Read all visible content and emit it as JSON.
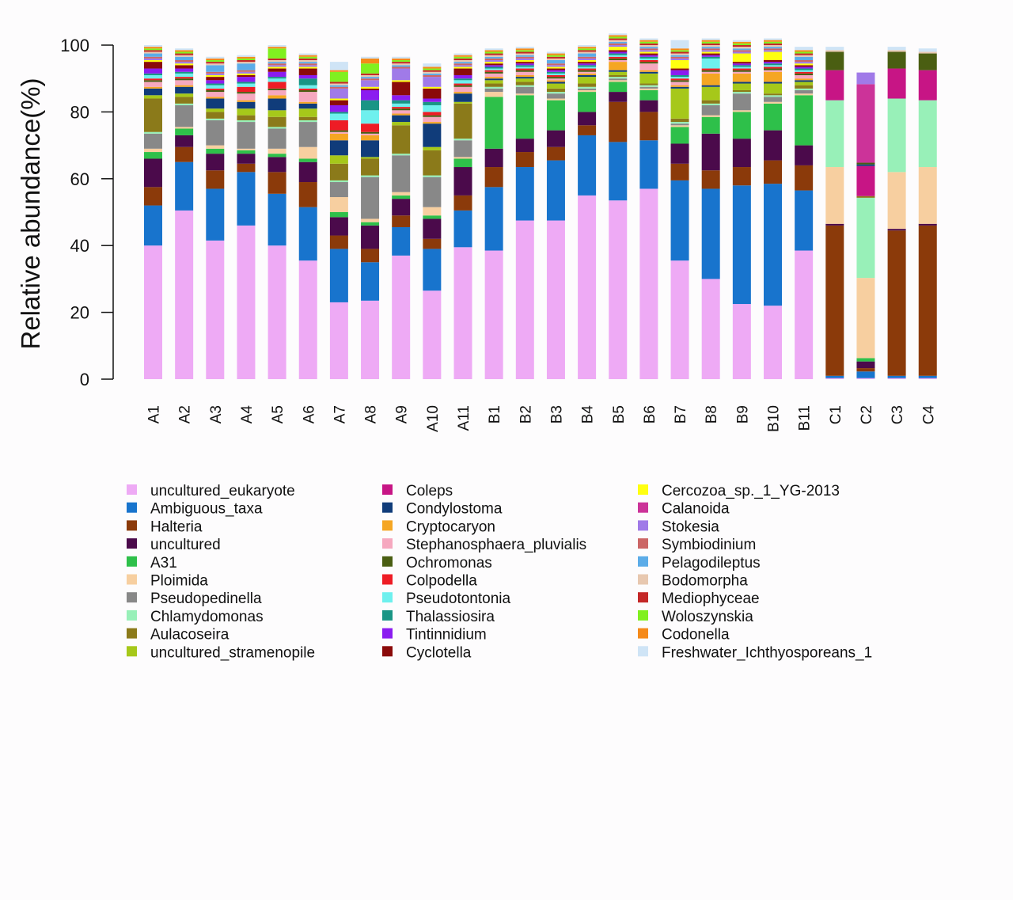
{
  "chart_data": {
    "type": "bar",
    "stacked": true,
    "ylabel": "Relative abundance(%)",
    "xlabel": "",
    "ylim": [
      0,
      100
    ],
    "yticks": [
      0,
      20,
      40,
      60,
      80,
      100
    ],
    "grid": false,
    "legend_position": "bottom",
    "categories": [
      "A1",
      "A2",
      "A3",
      "A4",
      "A5",
      "A6",
      "A7",
      "A8",
      "A9",
      "A10",
      "A11",
      "B1",
      "B2",
      "B3",
      "B4",
      "B5",
      "B6",
      "B7",
      "B8",
      "B9",
      "B10",
      "B11",
      "C1",
      "C2",
      "C3",
      "C4"
    ],
    "series": [
      {
        "name": "uncultured_eukaryote",
        "color": "#eeaaf5",
        "values": [
          40,
          50.5,
          41.5,
          46,
          40,
          35.5,
          23,
          23.5,
          37,
          26.5,
          39.5,
          38.5,
          47.5,
          47.5,
          55,
          53.5,
          57,
          35.5,
          30,
          22.5,
          22,
          38.5,
          0.3,
          0.3,
          0.3,
          0.3
        ]
      },
      {
        "name": "Ambiguous_taxa",
        "color": "#1874cd",
        "values": [
          12,
          14.5,
          15.5,
          16,
          15.5,
          16,
          16,
          11.5,
          8.5,
          12.5,
          11,
          19,
          16,
          18,
          18,
          17.5,
          14.5,
          24,
          27,
          35.5,
          36.5,
          18,
          0.7,
          2,
          0.7,
          0.7
        ]
      },
      {
        "name": "Halteria",
        "color": "#8b3a0a",
        "values": [
          5.5,
          4.5,
          5.5,
          2.5,
          6.5,
          7.5,
          4,
          4,
          3.5,
          3,
          4.5,
          6,
          4.5,
          4,
          3,
          12,
          8.5,
          5,
          5.5,
          5.5,
          7,
          7.5,
          45,
          1,
          43.5,
          45
        ]
      },
      {
        "name": "uncultured",
        "color": "#4b0a4b",
        "values": [
          8.5,
          3.5,
          5,
          3,
          4.5,
          6,
          5.5,
          7,
          5,
          6,
          8.5,
          5.5,
          4,
          5,
          4,
          3,
          3.5,
          6,
          11,
          8.5,
          9,
          6,
          0.5,
          2,
          0.5,
          0.5
        ]
      },
      {
        "name": "A31",
        "color": "#2ec04a",
        "values": [
          2,
          2,
          1.5,
          1,
          1,
          1,
          1.5,
          1,
          1,
          1,
          2.5,
          15.5,
          13,
          9,
          6,
          3,
          3,
          5,
          5,
          8,
          8,
          15,
          0,
          1,
          0,
          0
        ]
      },
      {
        "name": "Ploimida",
        "color": "#f7cfa0",
        "values": [
          1,
          0.5,
          1,
          0.5,
          1.5,
          3.5,
          4.5,
          1,
          1,
          2.5,
          0.5,
          1.5,
          0.5,
          0.5,
          0.5,
          0.5,
          0.5,
          0.5,
          0.5,
          0.5,
          0.5,
          0.5,
          17,
          24,
          17,
          17
        ]
      },
      {
        "name": "Pseudopedinella",
        "color": "#888888",
        "values": [
          4.5,
          6.5,
          7.5,
          8,
          6,
          7.5,
          4.5,
          12.5,
          11,
          9,
          5,
          1,
          2,
          1.5,
          0.5,
          0.5,
          0.5,
          0.5,
          3,
          5,
          1.5,
          1,
          0,
          0,
          0,
          0
        ]
      },
      {
        "name": "Chlamydomonas",
        "color": "#98f0b8",
        "values": [
          0.5,
          0.5,
          0.5,
          0.5,
          0.5,
          0.5,
          0.5,
          0.5,
          0.5,
          0.5,
          0.5,
          0.5,
          0.5,
          0.5,
          0.5,
          0.5,
          0.5,
          0.5,
          0.5,
          0.5,
          0.5,
          0.5,
          20,
          24,
          22,
          20
        ]
      },
      {
        "name": "Aulacoseira",
        "color": "#8b7a1a",
        "values": [
          10,
          2,
          2,
          1.5,
          3,
          1,
          5,
          5,
          8.5,
          7.5,
          10.5,
          1,
          1,
          1,
          1,
          0.5,
          0.5,
          1,
          1,
          0.5,
          0.5,
          1,
          0,
          0.5,
          0,
          0
        ]
      },
      {
        "name": "uncultured_stramenopile",
        "color": "#a6c81a",
        "values": [
          1,
          1,
          1,
          2,
          2,
          2.5,
          2.5,
          0.5,
          1,
          1,
          0.5,
          1,
          1,
          1.5,
          2,
          1,
          3,
          9,
          4,
          2,
          3,
          1,
          0,
          0,
          0,
          0
        ]
      },
      {
        "name": "Coleps",
        "color": "#c71585",
        "values": [
          0,
          0,
          0,
          0,
          0,
          0,
          0,
          0,
          0,
          0,
          0,
          0,
          0,
          0,
          0,
          0,
          0,
          0,
          0,
          0,
          0,
          0,
          9,
          9,
          9,
          9
        ]
      },
      {
        "name": "Condylostoma",
        "color": "#103c7a",
        "values": [
          2,
          2,
          3,
          2,
          3.5,
          1.5,
          4.5,
          5,
          2,
          7,
          2.5,
          0.5,
          0.5,
          0.5,
          0.5,
          0.5,
          0.5,
          0.5,
          0.5,
          0.5,
          0.5,
          0.5,
          0,
          0.5,
          0,
          0
        ]
      },
      {
        "name": "Cryptocaryon",
        "color": "#f5a623",
        "values": [
          0.5,
          0.5,
          0.5,
          0.5,
          1,
          0.5,
          2,
          1.5,
          0.5,
          0.5,
          0.5,
          0.5,
          0.5,
          0.5,
          0.5,
          2.5,
          0.5,
          0.5,
          3.5,
          2.5,
          3,
          0.5,
          0,
          0,
          0,
          0
        ]
      },
      {
        "name": "Stephanosphaera_pluvialis",
        "color": "#f6a8bf",
        "values": [
          1.5,
          1.5,
          1.5,
          2,
          1.5,
          3,
          0.5,
          0.5,
          1,
          1.5,
          1.5,
          1,
          1,
          0.5,
          0.5,
          0.5,
          2,
          1,
          0.5,
          0.5,
          0.5,
          1,
          0,
          0,
          0,
          0
        ]
      },
      {
        "name": "Ochromonas",
        "color": "#4a5e12",
        "values": [
          0.5,
          0.5,
          0.5,
          0.5,
          0.5,
          0.5,
          0.5,
          0.5,
          0.5,
          0.5,
          0.5,
          0.5,
          0.5,
          0.5,
          0.5,
          0.5,
          0.5,
          0.5,
          0.5,
          0.5,
          0.5,
          0.5,
          5.5,
          0.5,
          5,
          5
        ]
      },
      {
        "name": "Colpodella",
        "color": "#ee1c25",
        "values": [
          0.5,
          0.5,
          0.5,
          1.5,
          2,
          0.5,
          3,
          2.5,
          0.5,
          1,
          0.5,
          0.5,
          0.5,
          0.5,
          0.5,
          0.5,
          0.5,
          0.5,
          0.5,
          0.5,
          0.5,
          0.5,
          0,
          0,
          0,
          0
        ]
      },
      {
        "name": "Pseudotontonia",
        "color": "#6ef0ee",
        "values": [
          1,
          1,
          1,
          1,
          1,
          1,
          2,
          4,
          1,
          2,
          1,
          0.5,
          0.5,
          0.5,
          0.5,
          0.5,
          0.5,
          0.5,
          3,
          0.5,
          0.5,
          0.5,
          0,
          0,
          0,
          0
        ]
      },
      {
        "name": "Thalassiosira",
        "color": "#199585",
        "values": [
          0.5,
          0.5,
          0.5,
          0.5,
          0.5,
          2,
          0.5,
          3,
          1,
          1,
          0.5,
          0.5,
          0.5,
          0.5,
          0.5,
          0.5,
          0.5,
          0.5,
          0.5,
          0.5,
          0.5,
          0.5,
          0,
          0,
          0,
          0
        ]
      },
      {
        "name": "Tintinnidium",
        "color": "#8b1cf0",
        "values": [
          1.5,
          1,
          1,
          1.5,
          1.5,
          1,
          2,
          3,
          1.5,
          1,
          1,
          0.5,
          0.5,
          0.5,
          0.5,
          0.5,
          0.5,
          1.5,
          0.5,
          0.5,
          0.5,
          0.5,
          0,
          0,
          0,
          0
        ]
      },
      {
        "name": "Cyclotella",
        "color": "#8b0a0a",
        "values": [
          2,
          1,
          1,
          0.5,
          1,
          2,
          1.5,
          0.5,
          4,
          3,
          2,
          0.5,
          0.5,
          0.5,
          0.5,
          0.5,
          0.5,
          0.5,
          0.5,
          0.5,
          0.5,
          0.5,
          0,
          0,
          0,
          0
        ]
      },
      {
        "name": "Cercozoa_sp._1_YG-2013",
        "color": "#ffff10",
        "values": [
          0.5,
          0.5,
          0.5,
          0.5,
          0.5,
          0.5,
          0.5,
          0.5,
          0.5,
          0.5,
          0.5,
          0.5,
          0.5,
          0.5,
          0.5,
          1,
          0.5,
          2.5,
          0.5,
          2.5,
          2.5,
          0.5,
          0,
          0,
          0,
          0
        ]
      },
      {
        "name": "Calanoida",
        "color": "#cc3399",
        "values": [
          0,
          0,
          0,
          0,
          0,
          0,
          0,
          0,
          0,
          0,
          0,
          0,
          0,
          0,
          0,
          0,
          0,
          0,
          0,
          0,
          0,
          0,
          0,
          23.5,
          0,
          0
        ]
      },
      {
        "name": "Stokesia",
        "color": "#a07ae8",
        "values": [
          0.5,
          0.5,
          0.5,
          0.5,
          0.5,
          0.5,
          3,
          2,
          3.5,
          3,
          0.5,
          0.5,
          0.5,
          0.5,
          0.5,
          0.5,
          0.5,
          0.5,
          0.5,
          0.5,
          0.5,
          0.5,
          0,
          3.5,
          0,
          0
        ]
      },
      {
        "name": "Symbiodinium",
        "color": "#cc6666",
        "values": [
          0.5,
          0.5,
          0.5,
          0.5,
          0.5,
          0.5,
          0.5,
          0.5,
          0.5,
          0.5,
          0.5,
          0.5,
          0.5,
          0.5,
          0.5,
          0.5,
          0.5,
          0.5,
          0.5,
          0.5,
          0.5,
          0.5,
          0,
          0,
          0,
          0
        ]
      },
      {
        "name": "Pelagodileptus",
        "color": "#5cace8",
        "values": [
          1,
          1,
          2,
          2,
          0.5,
          0.5,
          0.5,
          0.5,
          0.5,
          0.5,
          0.5,
          0.5,
          0.5,
          1,
          1,
          0.5,
          0.5,
          0.5,
          0.5,
          0.5,
          0.5,
          1,
          0,
          0,
          0,
          0
        ]
      },
      {
        "name": "Bodomorpha",
        "color": "#e8c8b0",
        "values": [
          0.5,
          0.5,
          0.5,
          0.5,
          0.5,
          0.5,
          0.5,
          0.5,
          0.5,
          0.5,
          0.5,
          0.5,
          0.5,
          0.5,
          0.5,
          0.5,
          0.5,
          0.5,
          0.5,
          0.5,
          0.5,
          0.5,
          0.5,
          0,
          0.5,
          0.5
        ]
      },
      {
        "name": "Mediophyceae",
        "color": "#c42828",
        "values": [
          0.5,
          0.5,
          0.5,
          0.5,
          0.5,
          0.5,
          0.5,
          0.5,
          0.5,
          0.5,
          0.5,
          0.5,
          0.5,
          0.5,
          0.5,
          0.5,
          0.5,
          0.5,
          0.5,
          0.5,
          0.5,
          0.5,
          0,
          0,
          0,
          0
        ]
      },
      {
        "name": "Woloszynskia",
        "color": "#80f020",
        "values": [
          0.5,
          0.5,
          0.5,
          0.5,
          3,
          0.5,
          3,
          3,
          0.5,
          0.5,
          0.5,
          0.5,
          0.5,
          0.5,
          0.5,
          0.5,
          0.5,
          0.5,
          0.5,
          0.5,
          0.5,
          0.5,
          0,
          0,
          0,
          0
        ]
      },
      {
        "name": "Codonella",
        "color": "#f58a1a",
        "values": [
          0.5,
          0.5,
          0.5,
          0.5,
          0.5,
          0.5,
          0.5,
          1.5,
          0.5,
          0.5,
          0.5,
          0.5,
          0.5,
          0.5,
          0.5,
          0.5,
          0.5,
          0.5,
          0.5,
          0.5,
          0.5,
          0.5,
          0,
          0,
          0,
          0
        ]
      },
      {
        "name": "Freshwater_Ichthyosporeans_1",
        "color": "#cfe4f6",
        "values": [
          0.5,
          0.5,
          0.5,
          0.5,
          0.5,
          0.5,
          2.5,
          0.5,
          0.5,
          1,
          0.5,
          0.5,
          0.5,
          0.5,
          0.5,
          0.5,
          0.5,
          2.5,
          0.5,
          0.5,
          0.5,
          1,
          1,
          0,
          1,
          1
        ]
      }
    ]
  }
}
